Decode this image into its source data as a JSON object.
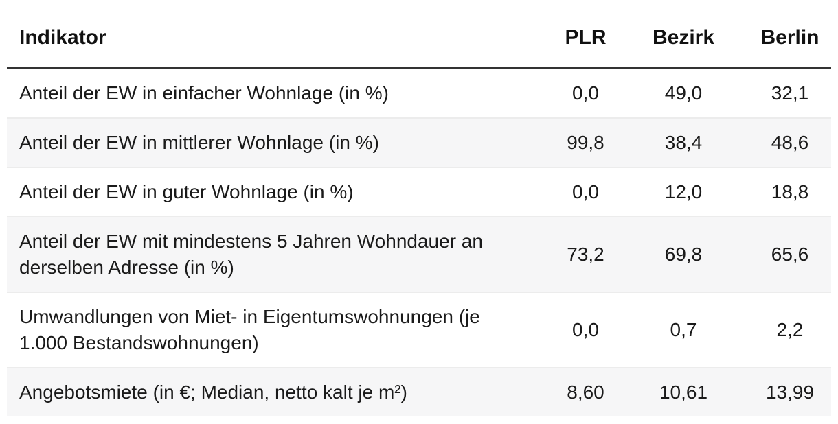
{
  "table": {
    "header": {
      "indicator": "Indikator",
      "plr": "PLR",
      "bezirk": "Bezirk",
      "berlin": "Berlin"
    },
    "rows": [
      {
        "indicator": "Anteil der EW in einfacher Wohnlage (in %)",
        "plr": "0,0",
        "bezirk": "49,0",
        "berlin": "32,1"
      },
      {
        "indicator": "Anteil der EW in mittlerer Wohnlage (in %)",
        "plr": "99,8",
        "bezirk": "38,4",
        "berlin": "48,6"
      },
      {
        "indicator": "Anteil der EW in guter Wohnlage (in %)",
        "plr": "0,0",
        "bezirk": "12,0",
        "berlin": "18,8"
      },
      {
        "indicator": "Anteil der EW mit mindestens 5 Jahren Wohndauer an derselben Adresse (in %)",
        "plr": "73,2",
        "bezirk": "69,8",
        "berlin": "65,6"
      },
      {
        "indicator": "Umwandlungen von Miet- in Eigentumswohnungen (je 1.000 Bestandswohnungen)",
        "plr": "0,0",
        "bezirk": "0,7",
        "berlin": "2,2"
      },
      {
        "indicator": "Angebotsmiete (in €; Median, netto kalt je m²)",
        "plr": "8,60",
        "bezirk": "10,61",
        "berlin": "13,99"
      }
    ],
    "colors": {
      "header_rule": "#333333",
      "row_separator": "#ececec",
      "zebra_row_bg": "#f6f6f7",
      "text": "#1a1a1a"
    }
  },
  "chart_data": {
    "type": "table",
    "title": "",
    "columns": [
      "Indikator",
      "PLR",
      "Bezirk",
      "Berlin"
    ],
    "rows": [
      [
        "Anteil der EW in einfacher Wohnlage (in %)",
        0.0,
        49.0,
        32.1
      ],
      [
        "Anteil der EW in mittlerer Wohnlage (in %)",
        99.8,
        38.4,
        48.6
      ],
      [
        "Anteil der EW in guter Wohnlage (in %)",
        0.0,
        12.0,
        18.8
      ],
      [
        "Anteil der EW mit mindestens 5 Jahren Wohndauer an derselben Adresse (in %)",
        73.2,
        69.8,
        65.6
      ],
      [
        "Umwandlungen von Miet- in Eigentumswohnungen (je 1.000 Bestandswohnungen)",
        0.0,
        0.7,
        2.2
      ],
      [
        "Angebotsmiete (in €; Median, netto kalt je m²)",
        8.6,
        10.61,
        13.99
      ]
    ],
    "number_format": "de-DE decimal comma",
    "layout": "zebra-striped rows, thick rule under header, numeric columns centered"
  }
}
